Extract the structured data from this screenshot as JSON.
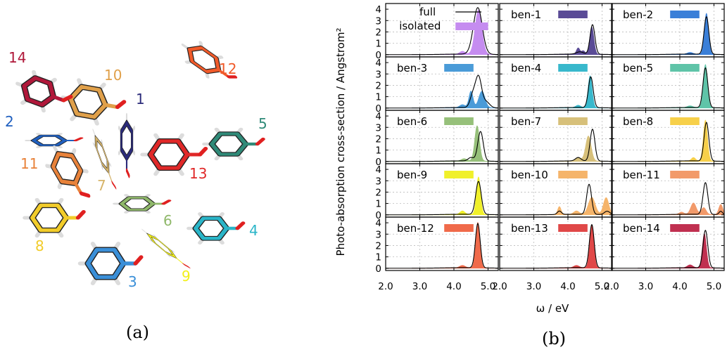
{
  "figure": {
    "label_a": "(a)",
    "label_b": "(b)"
  },
  "molecules": [
    {
      "label": "1",
      "color": "#2b2b7a"
    },
    {
      "label": "2",
      "color": "#1f5fbf"
    },
    {
      "label": "3",
      "color": "#3a8fd8"
    },
    {
      "label": "4",
      "color": "#2ab5c8"
    },
    {
      "label": "5",
      "color": "#2f8a78"
    },
    {
      "label": "6",
      "color": "#8fb86a"
    },
    {
      "label": "7",
      "color": "#d6b46a"
    },
    {
      "label": "8",
      "color": "#f2cc2a"
    },
    {
      "label": "9",
      "color": "#f2f01a"
    },
    {
      "label": "10",
      "color": "#e0a04a"
    },
    {
      "label": "11",
      "color": "#e8823a"
    },
    {
      "label": "12",
      "color": "#f05a2a"
    },
    {
      "label": "13",
      "color": "#e02828"
    },
    {
      "label": "14",
      "color": "#b0183a"
    }
  ],
  "chart_data": {
    "type": "line",
    "ylabel": "Photo-absorption cross-section / Angstrom²",
    "xlabel": "ω / eV",
    "xlim": [
      2.0,
      5.3
    ],
    "ylim": [
      -0.2,
      4.5
    ],
    "x_ticks": [
      "2.0",
      "3.0",
      "4.0",
      "5.0"
    ],
    "y_ticks": [
      "0",
      "1",
      "2",
      "3",
      "4"
    ],
    "grid": true,
    "legend": {
      "full": "full",
      "isolated": "isolated"
    },
    "panels": [
      {
        "name": "",
        "color": "#c58cf0",
        "legend_panel": true,
        "full": [
          [
            4.7,
            4.1,
            0.13
          ]
        ],
        "isolated": [
          [
            4.72,
            3.9,
            0.1
          ],
          [
            4.25,
            0.25,
            0.08
          ]
        ]
      },
      {
        "name": "ben-1",
        "color": "#5a4b96",
        "full": [
          [
            4.72,
            2.6,
            0.07
          ],
          [
            4.35,
            0.2,
            0.1
          ]
        ],
        "isolated": [
          [
            4.7,
            2.4,
            0.06
          ],
          [
            4.3,
            0.55,
            0.05
          ],
          [
            4.45,
            0.3,
            0.05
          ]
        ]
      },
      {
        "name": "ben-2",
        "color": "#3a7fd8",
        "full": [
          [
            4.78,
            3.3,
            0.07
          ]
        ],
        "isolated": [
          [
            4.78,
            3.6,
            0.06
          ],
          [
            4.3,
            0.15,
            0.08
          ]
        ]
      },
      {
        "name": "ben-3",
        "color": "#4a9bd8",
        "full": [
          [
            4.72,
            2.7,
            0.09
          ],
          [
            4.55,
            1.0,
            0.08
          ],
          [
            4.95,
            0.5,
            0.1
          ]
        ],
        "isolated": [
          [
            4.5,
            1.45,
            0.06
          ],
          [
            4.82,
            1.45,
            0.09
          ],
          [
            4.25,
            0.25,
            0.08
          ]
        ]
      },
      {
        "name": "ben-4",
        "color": "#38b8cc",
        "full": [
          [
            4.67,
            2.7,
            0.07
          ]
        ],
        "isolated": [
          [
            4.65,
            2.8,
            0.06
          ],
          [
            4.3,
            0.2,
            0.07
          ]
        ]
      },
      {
        "name": "ben-5",
        "color": "#5fc4a8",
        "full": [
          [
            4.75,
            3.5,
            0.07
          ]
        ],
        "isolated": [
          [
            4.75,
            3.8,
            0.06
          ],
          [
            4.3,
            0.15,
            0.08
          ]
        ]
      },
      {
        "name": "ben-6",
        "color": "#96c07a",
        "full": [
          [
            4.78,
            2.6,
            0.08
          ],
          [
            4.5,
            0.3,
            0.08
          ]
        ],
        "isolated": [
          [
            4.68,
            3.1,
            0.07
          ],
          [
            4.3,
            0.2,
            0.08
          ]
        ]
      },
      {
        "name": "ben-7",
        "color": "#d7c07a",
        "full": [
          [
            4.72,
            2.8,
            0.07
          ],
          [
            4.3,
            0.3,
            0.08
          ]
        ],
        "isolated": [
          [
            4.6,
            2.2,
            0.08
          ],
          [
            4.3,
            0.3,
            0.08
          ]
        ]
      },
      {
        "name": "ben-8",
        "color": "#f7d04a",
        "full": [
          [
            4.78,
            3.4,
            0.07
          ]
        ],
        "isolated": [
          [
            4.75,
            3.6,
            0.06
          ],
          [
            4.4,
            0.3,
            0.06
          ]
        ]
      },
      {
        "name": "ben-9",
        "color": "#f0f02a",
        "full": [
          [
            4.72,
            2.9,
            0.08
          ]
        ],
        "isolated": [
          [
            4.72,
            3.3,
            0.06
          ],
          [
            4.25,
            0.3,
            0.07
          ]
        ]
      },
      {
        "name": "ben-10",
        "color": "#f5b46a",
        "full": [
          [
            4.62,
            2.65,
            0.07
          ],
          [
            3.75,
            0.3,
            0.06
          ],
          [
            5.15,
            0.3,
            0.08
          ]
        ],
        "isolated": [
          [
            3.75,
            0.7,
            0.05
          ],
          [
            4.7,
            1.5,
            0.1
          ],
          [
            5.12,
            1.5,
            0.08
          ],
          [
            4.25,
            0.3,
            0.08
          ]
        ]
      },
      {
        "name": "ben-11",
        "color": "#f29a6a",
        "full": [
          [
            4.75,
            2.8,
            0.07
          ],
          [
            5.2,
            0.3,
            0.05
          ]
        ],
        "isolated": [
          [
            4.4,
            1.0,
            0.08
          ],
          [
            4.05,
            0.2,
            0.07
          ],
          [
            4.7,
            0.6,
            0.07
          ],
          [
            5.2,
            0.9,
            0.06
          ]
        ]
      },
      {
        "name": "ben-12",
        "color": "#f06a4a",
        "full": [
          [
            4.7,
            3.9,
            0.07
          ]
        ],
        "isolated": [
          [
            4.7,
            4.0,
            0.06
          ],
          [
            4.25,
            0.2,
            0.08
          ]
        ]
      },
      {
        "name": "ben-13",
        "color": "#e04848",
        "full": [
          [
            4.7,
            3.8,
            0.07
          ]
        ],
        "isolated": [
          [
            4.7,
            3.8,
            0.06
          ],
          [
            4.25,
            0.2,
            0.08
          ]
        ]
      },
      {
        "name": "ben-14",
        "color": "#c03050",
        "full": [
          [
            4.75,
            3.3,
            0.07
          ]
        ],
        "isolated": [
          [
            4.72,
            3.0,
            0.06
          ],
          [
            4.3,
            0.25,
            0.08
          ]
        ]
      }
    ]
  }
}
